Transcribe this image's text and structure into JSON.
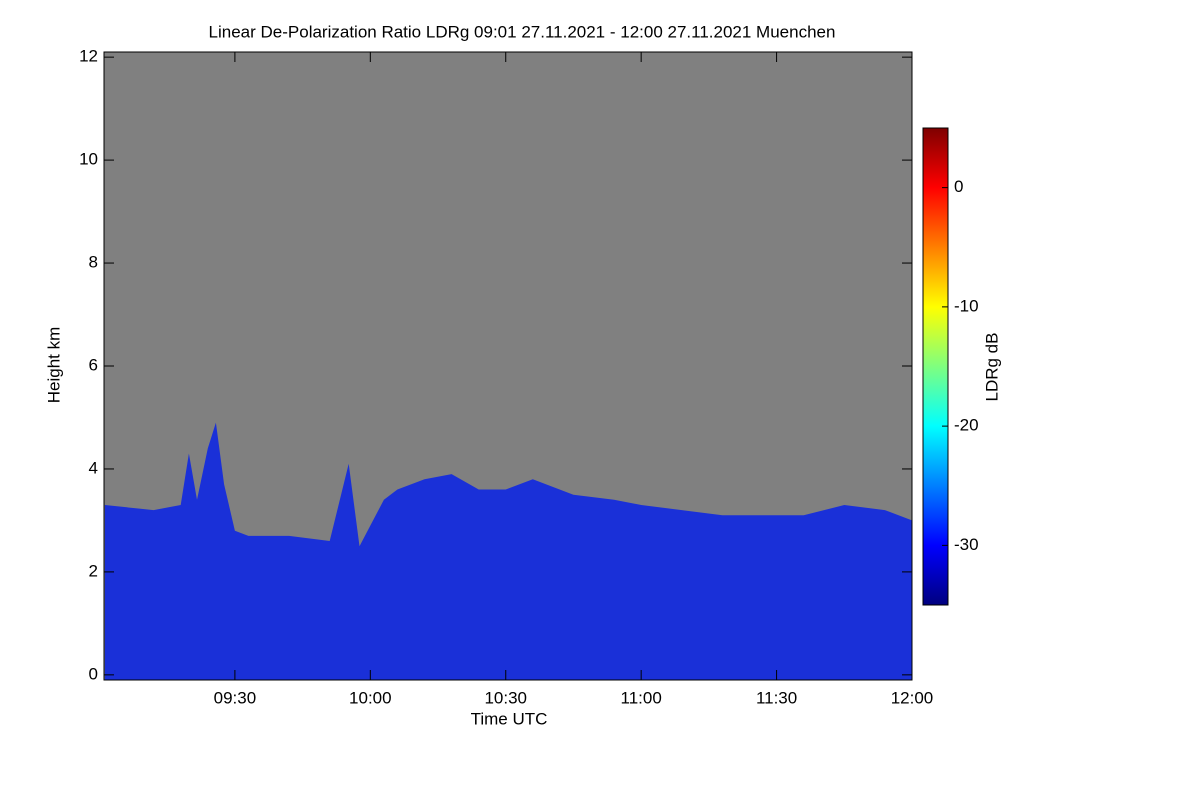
{
  "chart_data": {
    "type": "area",
    "title": "Linear De-Polarization Ratio LDRg   09:01 27.11.2021 - 12:00 27.11.2021 Muenchen",
    "x_label": "Time UTC",
    "y_label": "Height km",
    "colorbar_label": "LDRg dB",
    "x": [
      9.02,
      9.2,
      9.3,
      9.33,
      9.36,
      9.4,
      9.43,
      9.46,
      9.5,
      9.55,
      9.7,
      9.85,
      9.92,
      9.96,
      10.0,
      10.05,
      10.1,
      10.2,
      10.3,
      10.4,
      10.5,
      10.6,
      10.75,
      10.9,
      11.0,
      11.15,
      11.3,
      11.45,
      11.6,
      11.75,
      11.9,
      12.0
    ],
    "values": [
      3.3,
      3.2,
      3.3,
      4.3,
      3.4,
      4.4,
      4.9,
      3.7,
      2.8,
      2.7,
      2.7,
      2.6,
      4.1,
      2.5,
      2.9,
      3.4,
      3.6,
      3.8,
      3.9,
      3.6,
      3.6,
      3.8,
      3.5,
      3.4,
      3.3,
      3.2,
      3.1,
      3.1,
      3.1,
      3.3,
      3.2,
      3.0
    ],
    "color": "#1a30d8",
    "xlim": [
      9.0167,
      12.0
    ],
    "xticks": [
      {
        "value": 9.5,
        "label": "09:30"
      },
      {
        "value": 10.0,
        "label": "10:00"
      },
      {
        "value": 10.5,
        "label": "10:30"
      },
      {
        "value": 11.0,
        "label": "11:00"
      },
      {
        "value": 11.5,
        "label": "11:30"
      },
      {
        "value": 12.0,
        "label": "12:00"
      }
    ],
    "ylim": [
      -0.1,
      12.1
    ],
    "yticks": [
      0,
      2,
      4,
      6,
      8,
      10,
      12
    ],
    "zlim": [
      -35,
      5
    ],
    "zticks": [
      0,
      -10,
      -20,
      -30
    ],
    "colorscale": [
      "#00007f",
      "#0000ff",
      "#007fff",
      "#00ffff",
      "#7fff7f",
      "#ffff00",
      "#ff7f00",
      "#ff0000",
      "#7f0000"
    ],
    "background": "#808080"
  }
}
